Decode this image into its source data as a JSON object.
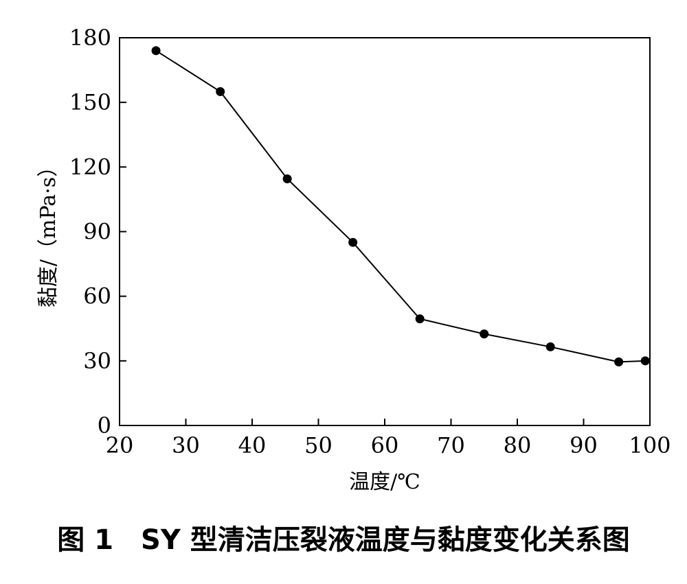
{
  "chart_data": {
    "type": "line",
    "x": [
      25.5,
      35.2,
      45.3,
      55.2,
      65.3,
      75.0,
      85.0,
      95.3,
      99.3
    ],
    "series": [
      {
        "values": [
          174,
          155,
          114.5,
          85,
          49.5,
          42.5,
          36.5,
          29.5,
          30
        ],
        "color": "#000000",
        "marker": "filled-circle"
      }
    ],
    "xlabel": "温度/℃",
    "ylabel": "黏度/（mPa·s）",
    "xlim": [
      20,
      100
    ],
    "ylim": [
      0,
      180
    ],
    "xticks": [
      20,
      30,
      40,
      50,
      60,
      70,
      80,
      90,
      100
    ],
    "yticks": [
      0,
      30,
      60,
      90,
      120,
      150,
      180
    ],
    "grid": false,
    "legend": "none"
  },
  "caption": "图 1　SY 型清洁压裂液温度与黏度变化关系图"
}
